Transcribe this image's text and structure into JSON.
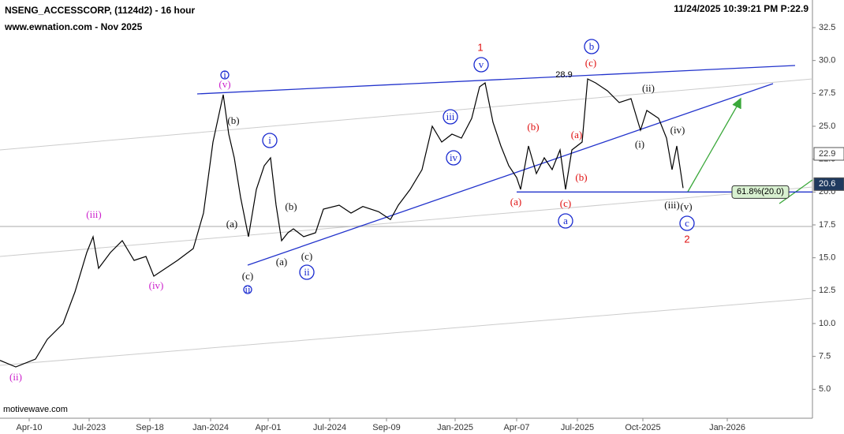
{
  "chart_data": {
    "type": "line",
    "title": "NSENG_ACCESSCORP, (1124d2) - 16 hour",
    "subtitle": "www.ewnation.com  - Nov 2025",
    "timestamp": "11/24/2025 10:39:21 PM  P:22.9",
    "source": "motivewave.com",
    "color": "#000000",
    "x": [
      0,
      20,
      45,
      60,
      80,
      95,
      110,
      118,
      125,
      140,
      155,
      170,
      185,
      195,
      210,
      225,
      245,
      258,
      270,
      283,
      290,
      297,
      305,
      315,
      325,
      335,
      343,
      350,
      357,
      365,
      372,
      385,
      400,
      410,
      430,
      445,
      460,
      480,
      495,
      505,
      520,
      535,
      548,
      560,
      573,
      585,
      598,
      608,
      615,
      625,
      635,
      645,
      655,
      660,
      670,
      680,
      690,
      700,
      710,
      717,
      725,
      738,
      745,
      755,
      770,
      785,
      800,
      812,
      820,
      835,
      845,
      852,
      858,
      866
    ],
    "values": [
      7.2,
      6.7,
      7.3,
      8.8,
      10.0,
      12.4,
      15.4,
      16.6,
      14.2,
      15.4,
      16.3,
      14.8,
      15.1,
      13.6,
      14.2,
      14.8,
      15.7,
      18.4,
      23.8,
      27.4,
      24.4,
      22.6,
      19.6,
      16.6,
      20.2,
      22.0,
      22.6,
      19.0,
      16.3,
      16.9,
      17.2,
      16.6,
      16.9,
      18.7,
      19.0,
      18.4,
      18.9,
      18.5,
      17.9,
      19.0,
      20.2,
      21.7,
      25.0,
      23.8,
      24.4,
      24.1,
      25.6,
      28.0,
      28.3,
      25.3,
      23.5,
      22.0,
      21.1,
      20.2,
      23.5,
      21.4,
      22.6,
      21.7,
      23.2,
      20.2,
      23.2,
      23.8,
      28.6,
      28.3,
      27.7,
      26.8,
      27.1,
      24.7,
      26.2,
      25.6,
      24.1,
      21.7,
      23.5,
      20.3
    ],
    "xlim": [
      0,
      1030
    ],
    "ylim": [
      2.8,
      34.6
    ],
    "xticks": [
      {
        "value": 37,
        "label": "Apr-10"
      },
      {
        "value": 113,
        "label": "Jul-2023"
      },
      {
        "value": 190,
        "label": "Sep-18"
      },
      {
        "value": 267,
        "label": "Jan-2024"
      },
      {
        "value": 340,
        "label": "Apr-01"
      },
      {
        "value": 418,
        "label": "Jul-2024"
      },
      {
        "value": 490,
        "label": "Sep-09"
      },
      {
        "value": 577,
        "label": "Jan-2025"
      },
      {
        "value": 655,
        "label": "Apr-07"
      },
      {
        "value": 732,
        "label": "Jul-2025"
      },
      {
        "value": 815,
        "label": "Oct-2025"
      },
      {
        "value": 922,
        "label": "Jan-2026"
      }
    ],
    "yticks": [
      {
        "value": 5,
        "label": "5.0"
      },
      7.5,
      {
        "value": 10,
        "label": "10.0"
      },
      12.5,
      {
        "value": 15,
        "label": "15.0"
      },
      17.5,
      {
        "value": 20,
        "label": "20.0"
      },
      22.5,
      {
        "value": 25,
        "label": "25.0"
      },
      27.5,
      {
        "value": 30,
        "label": "30.0"
      },
      32.5
    ],
    "marker_price": 22.9,
    "last_price": 20.6,
    "peak_label": 28.9,
    "fib_level": {
      "value": 20.0,
      "label": "61.8%(20.0)"
    },
    "annotations": [
      "i",
      "(v)",
      "(b)",
      "(a)",
      "(c)",
      "ii",
      "i",
      "(b)",
      "(a)",
      "(c)",
      "ii",
      "(iii)",
      "(iv)",
      "(ii)",
      "iii",
      "iv",
      "v",
      "1",
      "(a)",
      "(b)",
      "(c)",
      "a",
      "(a)",
      "(b)",
      "(c)",
      "b",
      "(ii)",
      "(i)",
      "(iv)",
      "(iii)",
      "(v)",
      "c",
      "2"
    ]
  }
}
